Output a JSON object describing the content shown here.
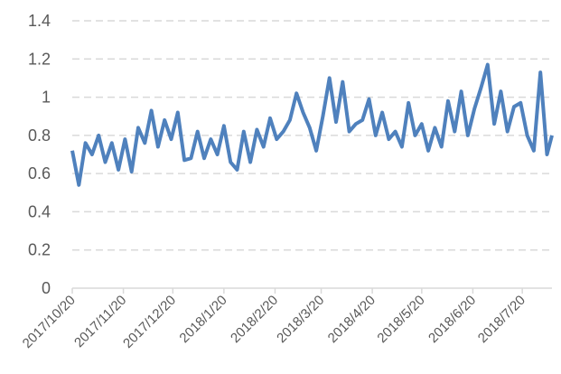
{
  "chart_data": {
    "type": "line",
    "x": [
      "2017/10/20",
      "2017/10/24",
      "2017/10/28",
      "2017/11/1",
      "2017/11/5",
      "2017/11/9",
      "2017/11/13",
      "2017/11/17",
      "2017/11/21",
      "2017/11/25",
      "2017/11/29",
      "2017/12/3",
      "2017/12/7",
      "2017/12/11",
      "2017/12/15",
      "2017/12/19",
      "2017/12/23",
      "2017/12/27",
      "2017/12/31",
      "2018/1/4",
      "2018/1/8",
      "2018/1/12",
      "2018/1/16",
      "2018/1/20",
      "2018/1/24",
      "2018/1/28",
      "2018/2/1",
      "2018/2/5",
      "2018/2/9",
      "2018/2/13",
      "2018/2/17",
      "2018/2/21",
      "2018/2/25",
      "2018/3/1",
      "2018/3/5",
      "2018/3/9",
      "2018/3/13",
      "2018/3/17",
      "2018/3/21",
      "2018/3/25",
      "2018/3/29",
      "2018/4/2",
      "2018/4/6",
      "2018/4/10",
      "2018/4/14",
      "2018/4/18",
      "2018/4/22",
      "2018/4/26",
      "2018/4/30",
      "2018/5/4",
      "2018/5/8",
      "2018/5/12",
      "2018/5/16",
      "2018/5/20",
      "2018/5/24",
      "2018/5/28",
      "2018/6/1",
      "2018/6/5",
      "2018/6/9",
      "2018/6/13",
      "2018/6/17",
      "2018/6/21",
      "2018/6/25",
      "2018/6/29",
      "2018/7/3",
      "2018/7/7",
      "2018/7/11",
      "2018/7/15",
      "2018/7/19",
      "2018/7/23",
      "2018/7/27",
      "2018/7/31",
      "2018/8/4",
      "2018/8/7"
    ],
    "series": [
      {
        "color": "#4f81bd",
        "values": [
          0.72,
          0.54,
          0.76,
          0.7,
          0.8,
          0.66,
          0.76,
          0.62,
          0.78,
          0.61,
          0.84,
          0.76,
          0.93,
          0.74,
          0.88,
          0.78,
          0.92,
          0.67,
          0.68,
          0.82,
          0.68,
          0.78,
          0.7,
          0.85,
          0.66,
          0.62,
          0.82,
          0.66,
          0.83,
          0.74,
          0.89,
          0.78,
          0.82,
          0.88,
          1.02,
          0.92,
          0.84,
          0.72,
          0.9,
          1.1,
          0.87,
          1.08,
          0.82,
          0.86,
          0.88,
          0.99,
          0.8,
          0.92,
          0.78,
          0.82,
          0.74,
          0.97,
          0.8,
          0.86,
          0.72,
          0.84,
          0.74,
          0.98,
          0.82,
          1.03,
          0.8,
          0.94,
          1.05,
          1.17,
          0.86,
          1.03,
          0.82,
          0.95,
          0.97,
          0.8,
          0.72,
          1.13,
          0.7,
          0.8
        ]
      }
    ],
    "xlim": [
      "2017/10/20",
      "2018/8/7"
    ],
    "xticks": [
      "2017/10/20",
      "2017/11/20",
      "2017/12/20",
      "2018/1/20",
      "2018/2/20",
      "2018/3/20",
      "2018/4/20",
      "2018/5/20",
      "2018/6/20",
      "2018/7/20"
    ],
    "ylim": [
      0,
      1.4
    ],
    "yticks": [
      0,
      0.2,
      0.4,
      0.6,
      0.8,
      1,
      1.2,
      1.4
    ],
    "grid": true
  }
}
